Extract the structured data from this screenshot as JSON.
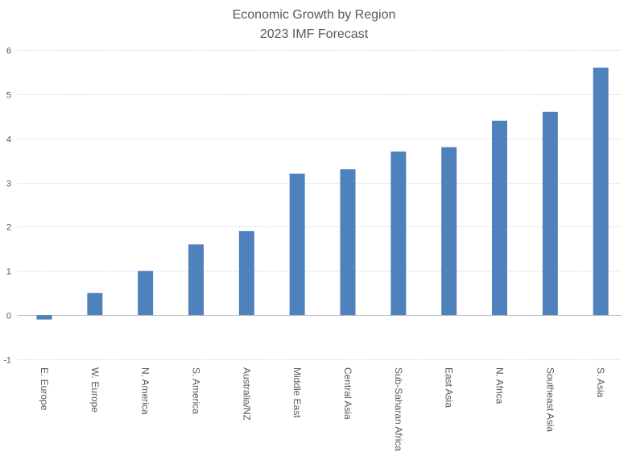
{
  "chart_data": {
    "type": "bar",
    "title": "Economic Growth by Region",
    "subtitle": "2023 IMF Forecast",
    "xlabel": "",
    "ylabel": "",
    "categories": [
      "E. Europe",
      "W. Europe",
      "N. America",
      "S. America",
      "Australia/NZ",
      "Middle East",
      "Central Asia",
      "Sub-Saharan Africa",
      "East Asia",
      "N. Africa",
      "Southeast Asia",
      "S. Asia"
    ],
    "values": [
      -0.1,
      0.5,
      1.0,
      1.6,
      1.9,
      3.2,
      3.3,
      3.7,
      3.8,
      4.4,
      4.6,
      5.6
    ],
    "ylim": [
      -1,
      6
    ],
    "yticks": [
      "-1",
      "0",
      "1",
      "2",
      "3",
      "4",
      "5",
      "6"
    ],
    "grid": true,
    "legend": "none",
    "bar_color": "#4f81bd"
  }
}
